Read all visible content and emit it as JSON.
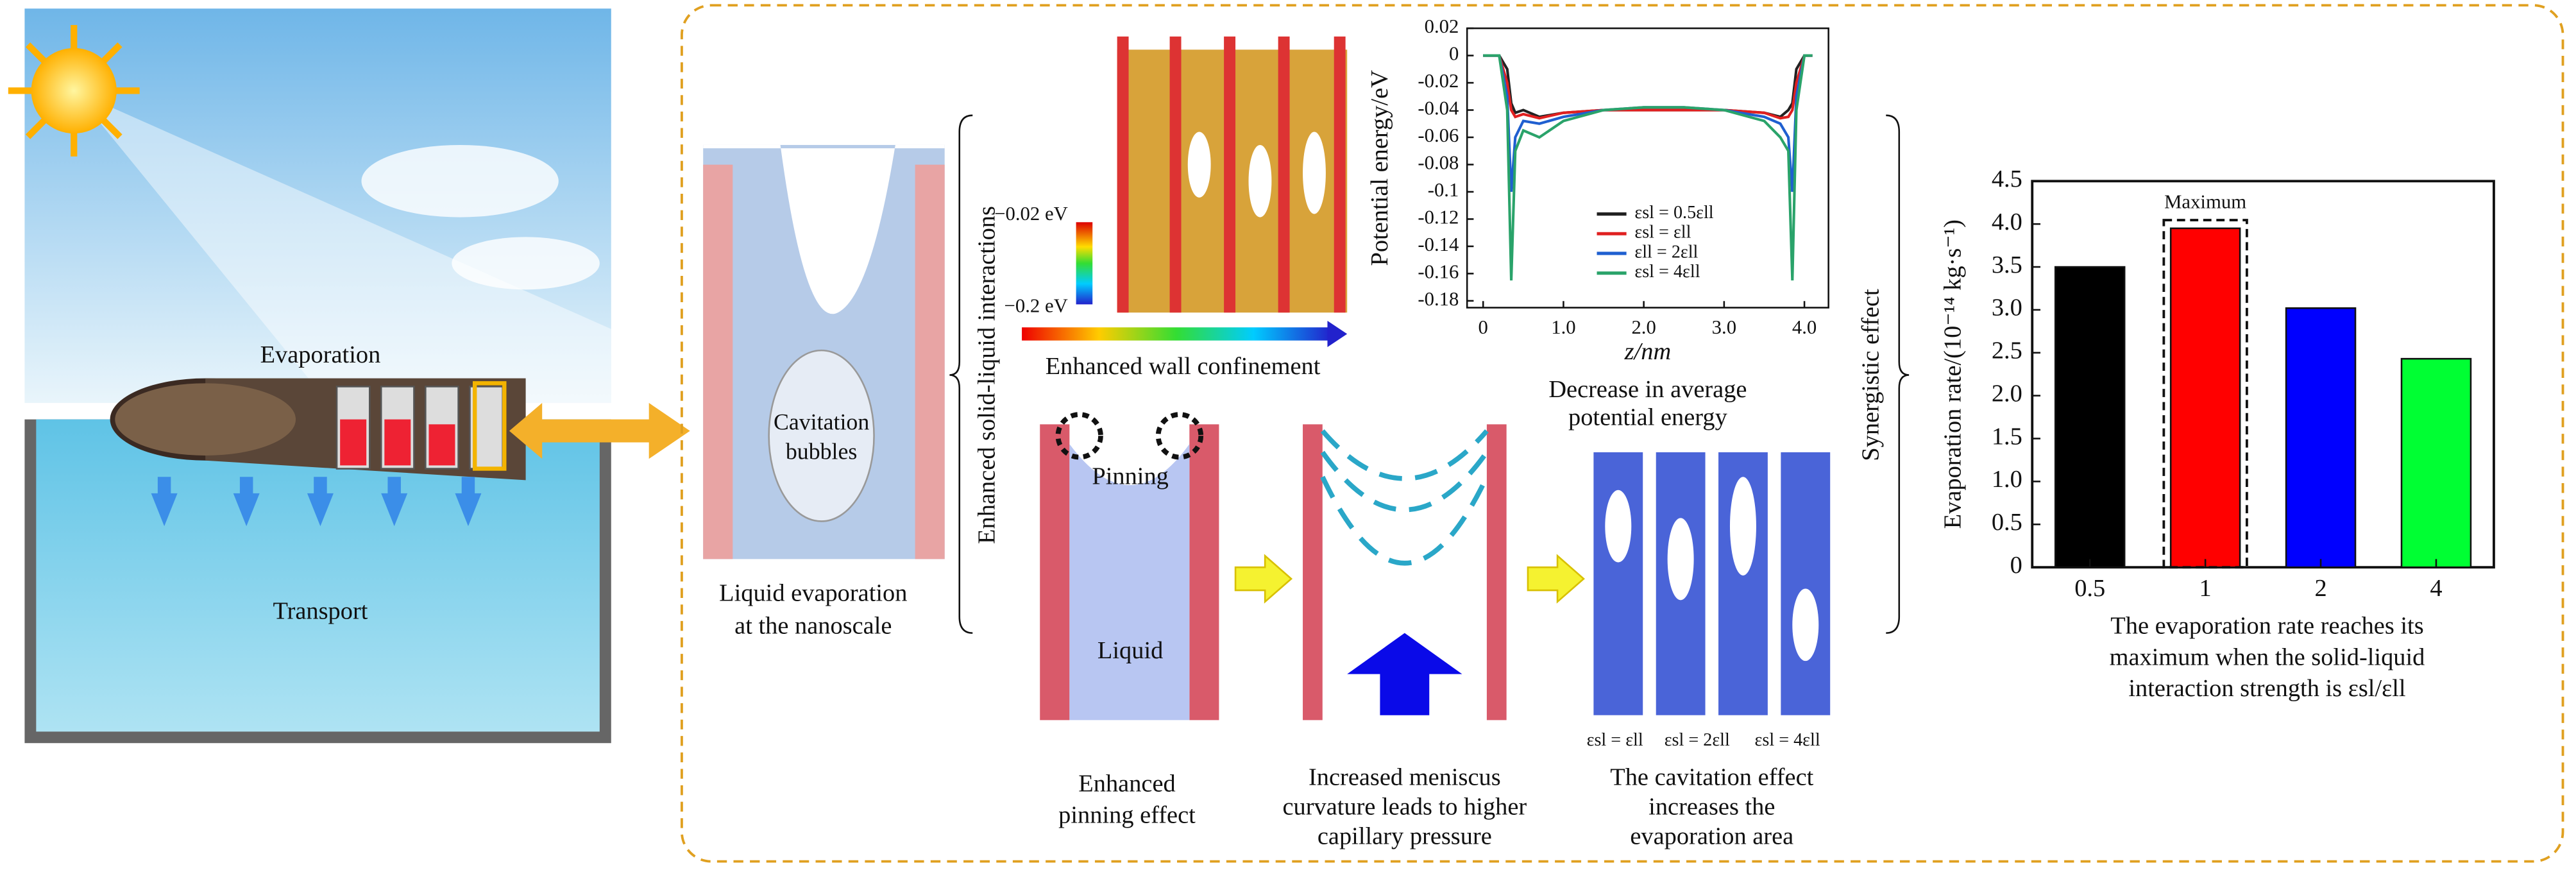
{
  "scene": {
    "evaporation": "Evaporation",
    "transport": "Transport"
  },
  "nanoscale": {
    "bubble_label": [
      "Cavitation",
      "bubbles"
    ],
    "caption": [
      "Liquid evaporation",
      "at the nanoscale"
    ]
  },
  "braces": {
    "left": "Enhanced solid-liquid interactions",
    "right": "Synergistic effect"
  },
  "snapshots": {
    "colorbar_labels": [
      "−0.02 eV",
      "−0.2 eV"
    ],
    "caption": "Enhanced wall confinement"
  },
  "chart_captions": {
    "line": [
      "Decrease in average",
      "potential energy"
    ],
    "bar": [
      "The evaporation rate reaches its",
      "maximum when the solid-liquid",
      "interaction strength is εsl/εll"
    ]
  },
  "mechanism": {
    "pinning_label": "Pinning",
    "liquid_label": "Liquid",
    "cases": [
      "εsl = εll",
      "εsl = 2εll",
      "εsl = 4εll"
    ],
    "captions": [
      [
        "Enhanced",
        "pinning effect"
      ],
      [
        "Increased meniscus",
        "curvature leads to higher",
        "capillary pressure"
      ],
      [
        "The cavitation effect",
        "increases the",
        "evaporation area"
      ]
    ]
  },
  "chart_data": [
    {
      "type": "line",
      "x_label": "z/nm",
      "y_label": "Potential energy/eV",
      "x": [
        0,
        0.2,
        0.3,
        0.35,
        0.4,
        0.5,
        0.7,
        1.0,
        1.5,
        2.0,
        2.5,
        3.0,
        3.5,
        3.7,
        3.8,
        3.85,
        3.9,
        4.0,
        4.1
      ],
      "series": [
        {
          "name": "εsl = 0.5εll",
          "color": "#222222",
          "values": [
            0,
            0,
            -0.01,
            -0.035,
            -0.042,
            -0.04,
            -0.045,
            -0.042,
            -0.04,
            -0.04,
            -0.04,
            -0.04,
            -0.042,
            -0.045,
            -0.04,
            -0.035,
            -0.01,
            0,
            0
          ]
        },
        {
          "name": "εsl = εll",
          "color": "#e02020",
          "values": [
            0,
            0,
            -0.02,
            -0.04,
            -0.045,
            -0.043,
            -0.046,
            -0.042,
            -0.04,
            -0.04,
            -0.04,
            -0.04,
            -0.042,
            -0.046,
            -0.045,
            -0.04,
            -0.02,
            0,
            0
          ]
        },
        {
          "name": "εll = 2εll",
          "color": "#1f5fd0",
          "values": [
            0,
            0,
            -0.03,
            -0.1,
            -0.06,
            -0.048,
            -0.05,
            -0.045,
            -0.04,
            -0.038,
            -0.038,
            -0.04,
            -0.045,
            -0.05,
            -0.06,
            -0.1,
            -0.03,
            0,
            0
          ]
        },
        {
          "name": "εsl = 4εll",
          "color": "#2aa36a",
          "values": [
            0,
            0,
            -0.04,
            -0.165,
            -0.07,
            -0.055,
            -0.06,
            -0.048,
            -0.04,
            -0.038,
            -0.038,
            -0.04,
            -0.048,
            -0.06,
            -0.07,
            -0.165,
            -0.04,
            0,
            0
          ]
        }
      ],
      "xlim": [
        -0.2,
        4.3
      ],
      "xticks": [
        0,
        {
          "value": 1,
          "label": "1.0"
        },
        {
          "value": 2,
          "label": "2.0"
        },
        {
          "value": 3,
          "label": "3.0"
        },
        {
          "value": 4,
          "label": "4.0"
        }
      ],
      "ylim": [
        -0.185,
        0.02
      ],
      "yticks": [
        0.02,
        0,
        -0.02,
        -0.04,
        -0.06,
        -0.08,
        -0.1,
        -0.12,
        -0.14,
        -0.16,
        -0.18
      ]
    },
    {
      "type": "bar",
      "y_label": "Evaporation rate/(10⁻¹⁴ kg·s⁻¹)",
      "annotation": "Maximum",
      "categories": [
        "0.5",
        "1",
        "2",
        "4"
      ],
      "values": [
        3.5,
        3.95,
        3.02,
        2.43
      ],
      "colors": [
        "#000000",
        "#ff0000",
        "#0000ff",
        "#00ff33"
      ],
      "ylim": [
        0,
        4.5
      ],
      "yticks": [
        0,
        0.5,
        {
          "value": 1,
          "label": "1.0"
        },
        1.5,
        {
          "value": 2,
          "label": "2.0"
        },
        2.5,
        {
          "value": 3,
          "label": "3.0"
        },
        3.5,
        {
          "value": 4,
          "label": "4.0"
        },
        4.5
      ]
    }
  ]
}
